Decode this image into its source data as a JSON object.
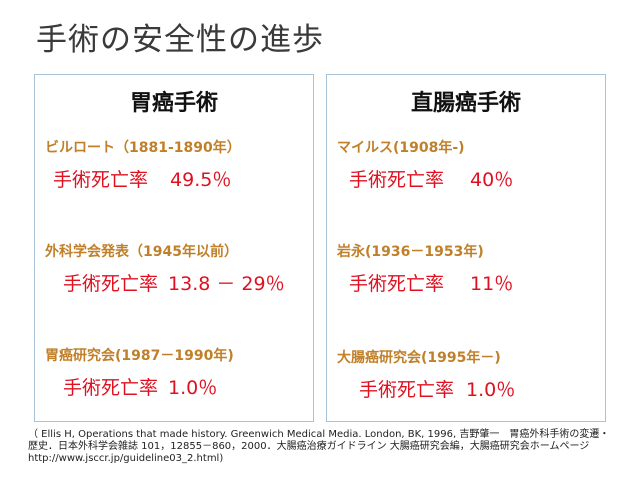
{
  "title": "手術の安全性の進歩",
  "panels": [
    {
      "title": "胃癌手術",
      "entries": [
        {
          "source": "ビルロート（1881-1890年）",
          "label": "手術死亡率",
          "value": "49.5％"
        },
        {
          "source": "外科学会発表（1945年以前）",
          "label": "手術死亡率",
          "value": "13.8 － 29％"
        },
        {
          "source": "胃癌研究会(1987－1990年)",
          "label": "手術死亡率",
          "value": "1.0％"
        }
      ]
    },
    {
      "title": "直腸癌手術",
      "entries": [
        {
          "source": "マイルス(1908年-)",
          "label": "手術死亡率",
          "value": "40％"
        },
        {
          "source": "岩永(1936－1953年)",
          "label": "手術死亡率",
          "value": "11％"
        },
        {
          "source": "大腸癌研究会(1995年－)",
          "label": "手術死亡率",
          "value": "1.0％"
        }
      ]
    }
  ],
  "citation": "（ Ellis H, Operations that made history. Greenwich Medical Media. London, BK, 1996, 吉野肇一　胃癌外科手術の変遷・歴史．日本外科学会雑誌 101，12855－860，2000．大腸癌治療ガイドライン 大腸癌研究会編，大腸癌研究会ホームページhttp://www.jsccr.jp/guideline03_2.html)"
}
